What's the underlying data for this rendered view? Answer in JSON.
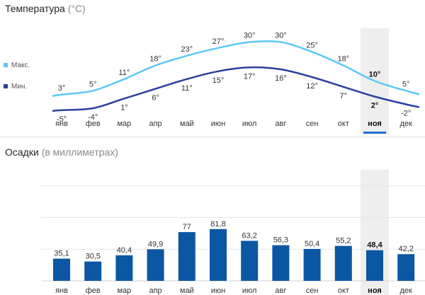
{
  "temperature": {
    "title": "Температура",
    "unit": "(°C)",
    "legend_max": "Макс.",
    "legend_min": "Мин.",
    "max_color": "#5bc8f5",
    "min_color": "#2b3f9e"
  },
  "precipitation": {
    "title": "Осадки",
    "unit": "(в миллиметрах)",
    "bar_color": "#0b57a4"
  },
  "selected_month_index": 10,
  "highlight_color": "#1e6fd9",
  "chart_data": [
    {
      "type": "line",
      "title": "Температура (°C)",
      "categories": [
        "янв",
        "фев",
        "мар",
        "апр",
        "май",
        "июн",
        "июл",
        "авг",
        "сен",
        "окт",
        "ноя",
        "дек"
      ],
      "series": [
        {
          "name": "Макс.",
          "values": [
            3,
            5,
            11,
            18,
            23,
            27,
            30,
            30,
            25,
            18,
            10,
            5
          ]
        },
        {
          "name": "Мин.",
          "values": [
            -5,
            -4,
            1,
            6,
            11,
            15,
            17,
            16,
            12,
            7,
            2,
            -2
          ]
        }
      ],
      "value_labels": {
        "max": [
          "3°",
          "5°",
          "11°",
          "18°",
          "23°",
          "27°",
          "30°",
          "30°",
          "25°",
          "18°",
          "10°",
          "5°"
        ],
        "min": [
          "-5°",
          "-4°",
          "1°",
          "6°",
          "11°",
          "15°",
          "17°",
          "16°",
          "12°",
          "7°",
          "2°",
          "-2°"
        ]
      },
      "legend": "left",
      "grid": false
    },
    {
      "type": "bar",
      "title": "Осадки (в миллиметрах)",
      "categories": [
        "янв",
        "фев",
        "мар",
        "апр",
        "май",
        "июн",
        "июл",
        "авг",
        "сен",
        "окт",
        "ноя",
        "дек"
      ],
      "values": [
        35.1,
        30.5,
        40.4,
        49.9,
        77,
        81.8,
        63.2,
        56.3,
        50.4,
        55.2,
        48.4,
        42.2
      ],
      "value_labels": [
        "35,1",
        "30,5",
        "40,4",
        "49,9",
        "77",
        "81,8",
        "63,2",
        "56,3",
        "50,4",
        "55,2",
        "48,4",
        "42,2"
      ],
      "ylim": [
        0,
        200
      ],
      "grid": true
    }
  ]
}
